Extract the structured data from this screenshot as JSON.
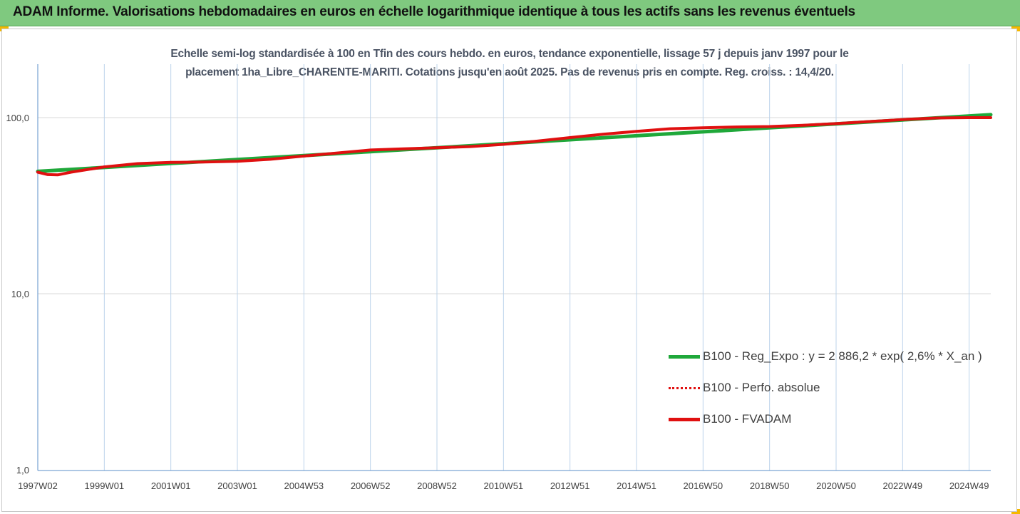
{
  "header": {
    "title": "ADAM Informe. Valorisations hebdomadaires en euros en échelle logarithmique identique à tous les actifs sans les revenus éventuels"
  },
  "chart_data": {
    "type": "line",
    "title_line1": "Echelle semi-log standardisée à 100 en Tfin des cours hebdo. en euros, tendance exponentielle, lissage 57 j depuis janv 1997 pour le",
    "title_line2": "placement 1ha_Libre_CHARENTE-MARITI. Cotations jusqu'en août 2025. Pas de revenus pris en compte. Reg. croiss. : 14,4/20.",
    "y_scale": "log",
    "ylim": [
      1,
      200
    ],
    "y_ticks": [
      {
        "value": 1,
        "label": "1,0"
      },
      {
        "value": 10,
        "label": "10,0"
      },
      {
        "value": 100,
        "label": "100,0"
      }
    ],
    "x_range": [
      1997.0,
      2025.65
    ],
    "x_ticks": [
      {
        "x": 1997.0,
        "label": "1997W02"
      },
      {
        "x": 1999.0,
        "label": "1999W01"
      },
      {
        "x": 2001.0,
        "label": "2001W01"
      },
      {
        "x": 2003.0,
        "label": "2003W01"
      },
      {
        "x": 2005.0,
        "label": "2004W53"
      },
      {
        "x": 2007.0,
        "label": "2006W52"
      },
      {
        "x": 2009.0,
        "label": "2008W52"
      },
      {
        "x": 2011.0,
        "label": "2010W51"
      },
      {
        "x": 2013.0,
        "label": "2012W51"
      },
      {
        "x": 2015.0,
        "label": "2014W51"
      },
      {
        "x": 2017.0,
        "label": "2016W50"
      },
      {
        "x": 2019.0,
        "label": "2018W50"
      },
      {
        "x": 2021.0,
        "label": "2020W50"
      },
      {
        "x": 2023.0,
        "label": "2022W49"
      },
      {
        "x": 2025.0,
        "label": "2024W49"
      }
    ],
    "grid": true,
    "legend_position": "bottom-right",
    "series": [
      {
        "name": "B100 - Reg_Expo : y = 2 886,2 * exp( 2,6% *  X_an )",
        "color": "#1fa83a",
        "style": "solid",
        "x": [
          1997.0,
          1999.0,
          2001.0,
          2003.0,
          2005.0,
          2007.0,
          2009.0,
          2011.0,
          2013.0,
          2015.0,
          2017.0,
          2019.0,
          2021.0,
          2023.0,
          2025.65
        ],
        "values": [
          49.5,
          52.1,
          54.9,
          57.8,
          60.9,
          64.1,
          67.5,
          71.1,
          74.9,
          78.9,
          83.1,
          87.5,
          92.2,
          97.1,
          103.9
        ]
      },
      {
        "name": "B100 - Perfo. absolue",
        "color": "#e01010",
        "style": "dotted",
        "x": [
          1997.0,
          1997.3,
          1997.6,
          1998.0,
          1999.0,
          2000.0,
          2001.0,
          2002.0,
          2003.0,
          2004.0,
          2005.0,
          2006.0,
          2007.0,
          2008.0,
          2009.0,
          2010.0,
          2011.0,
          2012.0,
          2013.0,
          2014.0,
          2015.0,
          2016.0,
          2017.0,
          2018.0,
          2019.0,
          2020.0,
          2021.0,
          2022.0,
          2023.0,
          2024.0,
          2025.0,
          2025.65
        ],
        "values": [
          49.0,
          47.5,
          47.3,
          49.0,
          52.5,
          54.8,
          55.7,
          56.0,
          56.5,
          58.0,
          60.5,
          63.0,
          65.5,
          66.5,
          67.5,
          68.5,
          70.5,
          73.5,
          77.0,
          80.5,
          83.5,
          86.5,
          87.5,
          88.5,
          89.0,
          90.5,
          92.5,
          95.0,
          97.5,
          99.5,
          100.0,
          100.0
        ]
      },
      {
        "name": "B100 - FVADAM",
        "color": "#e01010",
        "style": "solid",
        "x": [
          1997.0,
          1997.3,
          1997.6,
          1998.0,
          1999.0,
          2000.0,
          2001.0,
          2002.0,
          2003.0,
          2004.0,
          2005.0,
          2006.0,
          2007.0,
          2008.0,
          2009.0,
          2010.0,
          2011.0,
          2012.0,
          2013.0,
          2014.0,
          2015.0,
          2016.0,
          2017.0,
          2018.0,
          2019.0,
          2020.0,
          2021.0,
          2022.0,
          2023.0,
          2024.0,
          2025.0,
          2025.65
        ],
        "values": [
          49.0,
          47.5,
          47.3,
          49.0,
          52.5,
          54.8,
          55.7,
          56.0,
          56.5,
          58.0,
          60.5,
          63.0,
          65.5,
          66.5,
          67.5,
          68.5,
          70.5,
          73.5,
          77.0,
          80.5,
          83.5,
          86.5,
          87.5,
          88.5,
          89.0,
          90.5,
          92.5,
          95.0,
          97.5,
          99.5,
          100.0,
          100.0
        ]
      }
    ]
  }
}
